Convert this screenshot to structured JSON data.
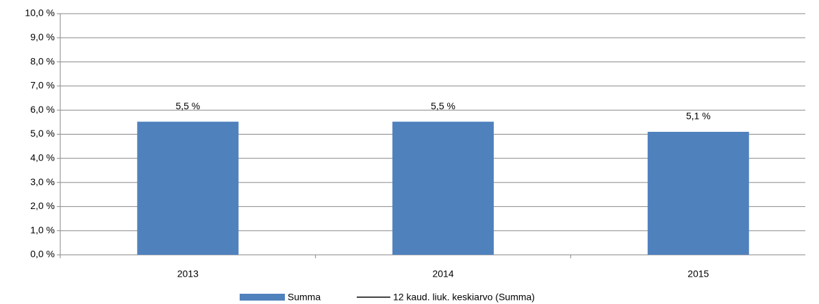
{
  "chart_data": {
    "type": "bar",
    "categories": [
      "2013",
      "2014",
      "2015"
    ],
    "series": [
      {
        "name": "Summa",
        "color": "#4f81bd",
        "values": [
          5.52,
          5.52,
          5.1
        ],
        "value_labels": [
          "5,5 %",
          "5,5 %",
          "5,1 %"
        ]
      },
      {
        "name": "12 kaud. liuk. keskiarvo (Summa)",
        "color": "#000000",
        "values": [
          null,
          null,
          null
        ]
      }
    ],
    "ylim": [
      0,
      10
    ],
    "yticks": [
      {
        "value": 0,
        "label": "0,0 %"
      },
      {
        "value": 1,
        "label": "1,0 %"
      },
      {
        "value": 2,
        "label": "2,0 %"
      },
      {
        "value": 3,
        "label": "3,0 %"
      },
      {
        "value": 4,
        "label": "4,0 %"
      },
      {
        "value": 5,
        "label": "5,0 %"
      },
      {
        "value": 6,
        "label": "6,0 %"
      },
      {
        "value": 7,
        "label": "7,0 %"
      },
      {
        "value": 8,
        "label": "8,0 %"
      },
      {
        "value": 9,
        "label": "9,0 %"
      },
      {
        "value": 10,
        "label": "10,0 %"
      }
    ],
    "grid": true,
    "legend": "bottom"
  }
}
